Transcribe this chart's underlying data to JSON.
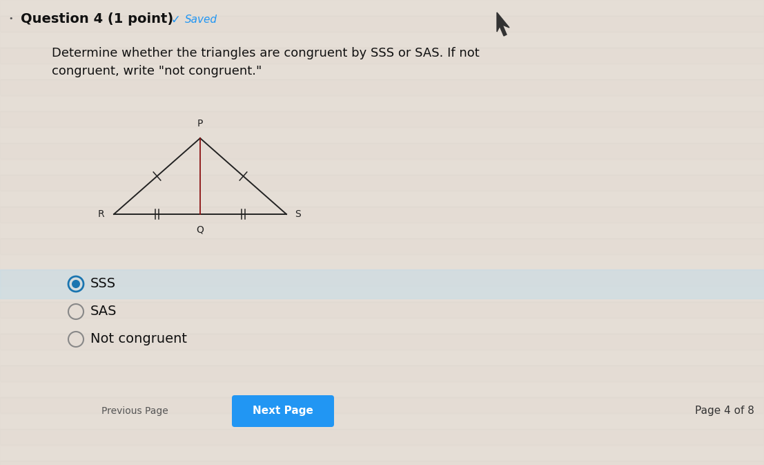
{
  "bg_color": "#e8e0d8",
  "panel_color": "#dde8e0",
  "title_text": "Question 4 (1 point)",
  "saved_text": "Saved",
  "question_text": "Determine whether the triangles are congruent by SSS or SAS. If not\ncongruent, write \"not congruent.\"",
  "options": [
    "SSS",
    "SAS",
    "Not congruent"
  ],
  "selected_option": 0,
  "prev_button_text": "Previous Page",
  "next_button_text": "Next Page",
  "page_text": "Page 4 of 8",
  "line_color": "#222222",
  "altitude_color": "#555555",
  "tick_color": "#222222",
  "label_color": "#222222",
  "radio_selected_outer": "#1a75b0",
  "radio_selected_inner": "#1a75b0",
  "radio_unselected_color": "#888888",
  "next_button_color": "#2196F3",
  "next_button_text_color": "#ffffff",
  "prev_button_text_color": "#555555",
  "highlight_row_color": "#c8dde8",
  "P": [
    0.265,
    0.735
  ],
  "R": [
    0.115,
    0.595
  ],
  "S": [
    0.415,
    0.595
  ],
  "Q": [
    0.265,
    0.595
  ]
}
